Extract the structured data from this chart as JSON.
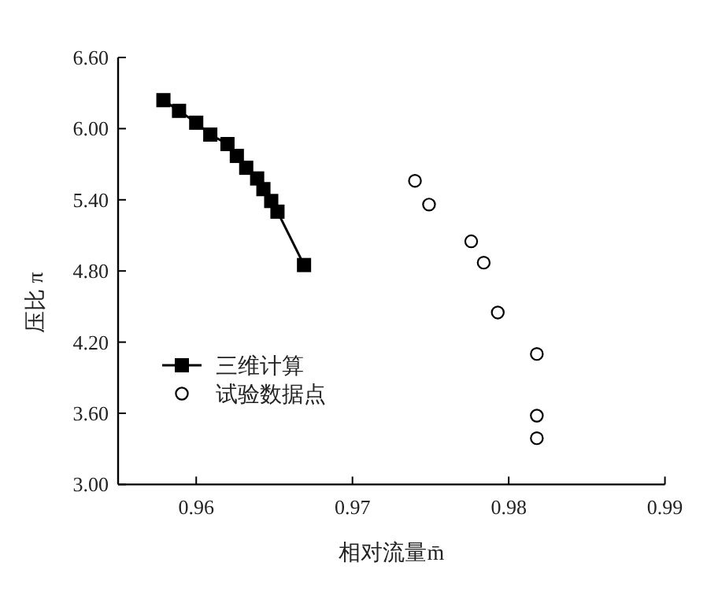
{
  "chart_data": {
    "type": "line",
    "xlabel": "相对流量m̄",
    "ylabel": "压比 π",
    "xlim": [
      0.955,
      0.99
    ],
    "ylim": [
      3.0,
      6.6
    ],
    "xticks": [
      {
        "value": 0.96,
        "label": "0.96"
      },
      {
        "value": 0.97,
        "label": "0.97"
      },
      {
        "value": 0.98,
        "label": "0.98"
      },
      {
        "value": 0.99,
        "label": "0.99"
      }
    ],
    "yticks": [
      {
        "value": 3.0,
        "label": "3.00"
      },
      {
        "value": 3.6,
        "label": "3.60"
      },
      {
        "value": 4.2,
        "label": "4.20"
      },
      {
        "value": 4.8,
        "label": "4.80"
      },
      {
        "value": 5.4,
        "label": "5.40"
      },
      {
        "value": 6.0,
        "label": "6.00"
      },
      {
        "value": 6.6,
        "label": "6.60"
      }
    ],
    "grid": false,
    "legend": "left",
    "series": [
      {
        "name": "三维计算",
        "marker": "square",
        "color": "#000000",
        "x": [
          0.9579,
          0.9589,
          0.96,
          0.9609,
          0.962,
          0.9626,
          0.9632,
          0.9639,
          0.9643,
          0.9648,
          0.9652,
          0.9669
        ],
        "values": [
          6.24,
          6.15,
          6.05,
          5.95,
          5.87,
          5.77,
          5.67,
          5.58,
          5.49,
          5.39,
          5.3,
          4.85
        ]
      },
      {
        "name": "试验数据点",
        "type": "scatter",
        "marker": "circle",
        "color": "#000000",
        "x": [
          0.974,
          0.9749,
          0.9776,
          0.9784,
          0.9793,
          0.9818,
          0.9818,
          0.9818
        ],
        "values": [
          5.56,
          5.36,
          5.05,
          4.87,
          4.45,
          4.1,
          3.58,
          3.39
        ]
      }
    ]
  }
}
